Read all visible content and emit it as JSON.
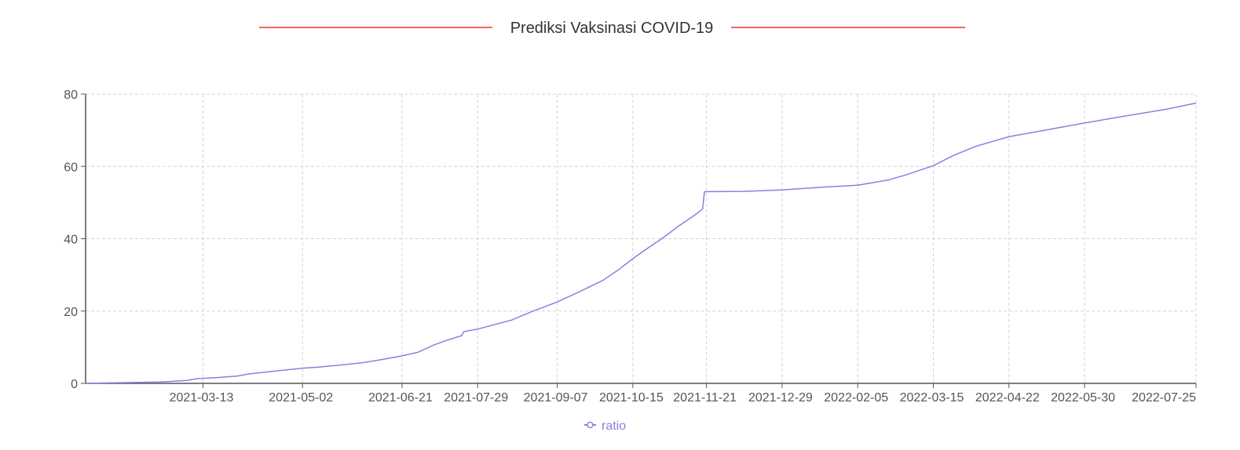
{
  "chart_data": {
    "type": "line",
    "title": "Prediksi Vaksinasi COVID-19",
    "xlabel": "",
    "ylabel": "",
    "x_start": "2021-01-13",
    "x_end": "2022-07-25",
    "x_ticks": [
      "2021-03-13",
      "2021-05-02",
      "2021-06-21",
      "2021-07-29",
      "2021-09-07",
      "2021-10-15",
      "2021-11-21",
      "2021-12-29",
      "2022-02-05",
      "2022-03-15",
      "2022-04-22",
      "2022-05-30",
      "2022-07-25"
    ],
    "ylim": [
      0,
      80
    ],
    "y_ticks": [
      0,
      20,
      40,
      60,
      80
    ],
    "grid": true,
    "legend_position": "bottom-center",
    "series": [
      {
        "name": "ratio",
        "color": "#8b80dd",
        "points": [
          [
            "2021-01-13",
            0
          ],
          [
            "2021-02-01",
            0.2
          ],
          [
            "2021-02-20",
            0.4
          ],
          [
            "2021-03-05",
            0.8
          ],
          [
            "2021-03-10",
            1.3
          ],
          [
            "2021-03-20",
            1.6
          ],
          [
            "2021-03-30",
            2.0
          ],
          [
            "2021-04-05",
            2.6
          ],
          [
            "2021-04-15",
            3.2
          ],
          [
            "2021-04-25",
            3.8
          ],
          [
            "2021-05-02",
            4.2
          ],
          [
            "2021-05-10",
            4.5
          ],
          [
            "2021-05-20",
            5.0
          ],
          [
            "2021-06-01",
            5.7
          ],
          [
            "2021-06-10",
            6.5
          ],
          [
            "2021-06-21",
            7.6
          ],
          [
            "2021-06-29",
            8.6
          ],
          [
            "2021-07-07",
            10.6
          ],
          [
            "2021-07-14",
            12.0
          ],
          [
            "2021-07-21",
            13.2
          ],
          [
            "2021-07-22",
            14.3
          ],
          [
            "2021-07-29",
            15.0
          ],
          [
            "2021-08-06",
            16.2
          ],
          [
            "2021-08-15",
            17.5
          ],
          [
            "2021-08-25",
            19.8
          ],
          [
            "2021-09-07",
            22.5
          ],
          [
            "2021-09-18",
            25.3
          ],
          [
            "2021-09-30",
            28.5
          ],
          [
            "2021-10-08",
            31.5
          ],
          [
            "2021-10-15",
            34.5
          ],
          [
            "2021-10-22",
            37.2
          ],
          [
            "2021-10-30",
            40.2
          ],
          [
            "2021-11-07",
            43.5
          ],
          [
            "2021-11-15",
            46.5
          ],
          [
            "2021-11-19",
            48.2
          ],
          [
            "2021-11-20",
            53.0
          ],
          [
            "2021-12-10",
            53.1
          ],
          [
            "2021-12-29",
            53.5
          ],
          [
            "2022-01-20",
            54.3
          ],
          [
            "2022-02-05",
            54.8
          ],
          [
            "2022-02-20",
            56.2
          ],
          [
            "2022-03-01",
            57.6
          ],
          [
            "2022-03-15",
            60.2
          ],
          [
            "2022-03-25",
            63.0
          ],
          [
            "2022-04-05",
            65.5
          ],
          [
            "2022-04-22",
            68.2
          ],
          [
            "2022-05-10",
            70.0
          ],
          [
            "2022-05-30",
            72.0
          ],
          [
            "2022-06-20",
            74.0
          ],
          [
            "2022-07-10",
            75.8
          ],
          [
            "2022-07-25",
            77.5
          ]
        ]
      }
    ]
  }
}
